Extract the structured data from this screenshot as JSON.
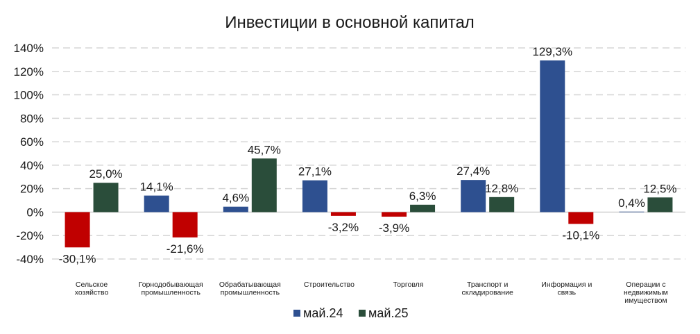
{
  "chart_data": {
    "type": "bar",
    "title": "Инвестиции в основной капитал",
    "xlabel": "",
    "ylabel": "",
    "ylim": [
      -40,
      140
    ],
    "yticks": [
      "140%",
      "120%",
      "100%",
      "80%",
      "60%",
      "40%",
      "20%",
      "0%",
      "-20%",
      "-40%"
    ],
    "ytick_values": [
      140,
      120,
      100,
      80,
      60,
      40,
      20,
      0,
      -20,
      -40
    ],
    "grid": true,
    "legend_position": "bottom",
    "categories": [
      [
        "Сельское",
        "хозяйство"
      ],
      [
        "Горнодобывающая",
        "промышленность"
      ],
      [
        "Обрабатывающая",
        "промышленность"
      ],
      [
        "Строительство"
      ],
      [
        "Торговля"
      ],
      [
        "Транспорт и",
        "складирование"
      ],
      [
        "Информация и",
        "связь"
      ],
      [
        "Операции с",
        "недвижимым",
        "имуществом"
      ]
    ],
    "series": [
      {
        "name": "май.24",
        "color": "#2E5090",
        "values": [
          -30.1,
          14.1,
          4.6,
          27.1,
          -3.9,
          27.4,
          129.3,
          0.4
        ],
        "labels": [
          "-30,1%",
          "14,1%",
          "4,6%",
          "27,1%",
          "-3,9%",
          "27,4%",
          "129,3%",
          "0,4%"
        ]
      },
      {
        "name": "май.25",
        "color": "#2A4D3A",
        "values": [
          25.0,
          -21.6,
          45.7,
          -3.2,
          6.3,
          12.8,
          -10.1,
          12.5
        ],
        "labels": [
          "25,0%",
          "-21,6%",
          "45,7%",
          "-3,2%",
          "6,3%",
          "12,8%",
          "-10,1%",
          "12,5%"
        ]
      }
    ],
    "negative_color": "#C00000"
  }
}
